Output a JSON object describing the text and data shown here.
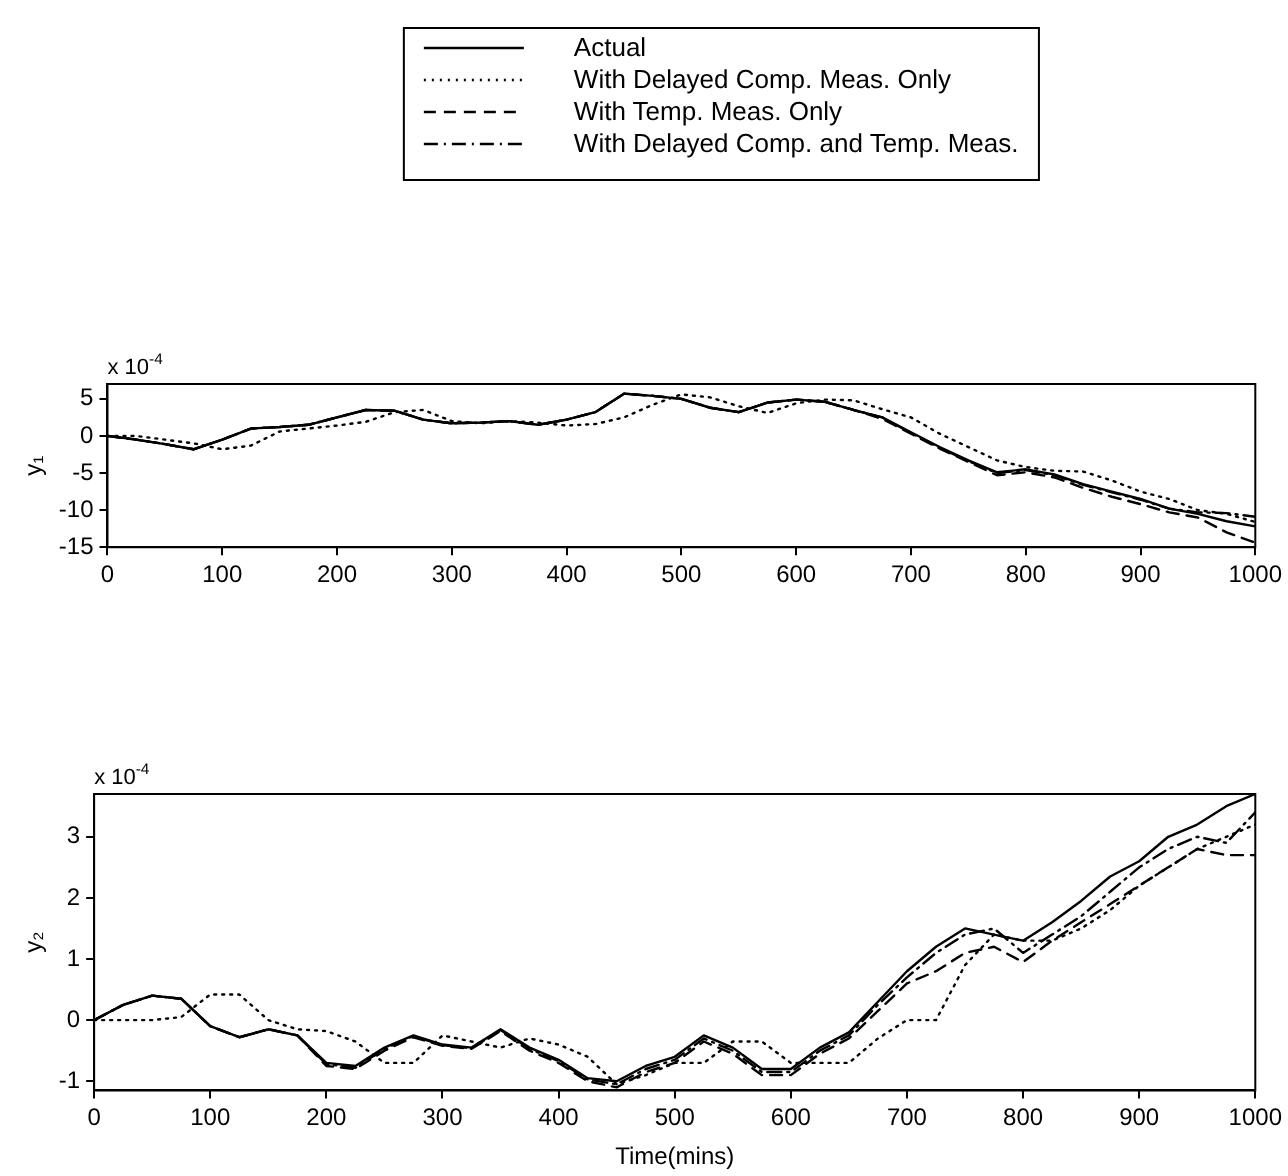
{
  "chart_data": [
    {
      "type": "line",
      "ylabel": "y₁",
      "annotations": [
        "x 10$^{-4}$"
      ],
      "legend": "top",
      "marker": "none",
      "grid": false,
      "x": [
        0,
        25,
        50,
        75,
        100,
        125,
        150,
        175,
        200,
        225,
        250,
        275,
        300,
        325,
        350,
        375,
        400,
        425,
        450,
        475,
        500,
        525,
        550,
        575,
        600,
        625,
        650,
        675,
        700,
        725,
        750,
        775,
        800,
        825,
        850,
        875,
        900,
        925,
        950,
        975,
        1000
      ],
      "xlim": [
        0,
        1000
      ],
      "xticks": [
        0,
        100,
        200,
        300,
        400,
        500,
        600,
        700,
        800,
        900,
        1000
      ],
      "ylim": [
        -15,
        7
      ],
      "yticks": [
        -15,
        -10,
        -5,
        0,
        5
      ],
      "series": [
        {
          "name": "Actual",
          "color": "#000000",
          "line_style": "solid",
          "values": [
            0,
            -0.5,
            -1.1,
            -1.8,
            -0.5,
            1.0,
            1.2,
            1.5,
            2.5,
            3.5,
            3.4,
            2.2,
            1.7,
            1.8,
            2.0,
            1.5,
            2.2,
            3.2,
            5.7,
            5.4,
            5.0,
            3.8,
            3.2,
            4.5,
            4.9,
            4.6,
            3.5,
            2.5,
            0.5,
            -1.5,
            -3.3,
            -4.9,
            -4.5,
            -5.2,
            -6.5,
            -7.5,
            -8.5,
            -9.8,
            -10.5,
            -11.5,
            -12.2
          ]
        },
        {
          "name": "With Delayed Comp. Meas. Only",
          "color": "#000000",
          "line_style": "dotted",
          "values": [
            0,
            0,
            -0.5,
            -1.0,
            -1.8,
            -1.3,
            0.6,
            1.0,
            1.4,
            1.9,
            3.2,
            3.5,
            2.0,
            1.7,
            2.0,
            1.8,
            1.4,
            1.6,
            2.5,
            4.2,
            5.6,
            5.2,
            4.0,
            3.1,
            4.4,
            4.9,
            4.8,
            3.6,
            2.5,
            0.3,
            -1.5,
            -3.3,
            -4.2,
            -4.7,
            -4.8,
            -6.0,
            -7.5,
            -8.5,
            -10.0,
            -10.5,
            -11.6
          ]
        },
        {
          "name": "With Temp. Meas. Only",
          "color": "#000000",
          "line_style": "dashed",
          "values": [
            0,
            -0.5,
            -1.1,
            -1.8,
            -0.5,
            1.0,
            1.2,
            1.5,
            2.5,
            3.5,
            3.4,
            2.2,
            1.7,
            1.8,
            2.0,
            1.5,
            2.2,
            3.2,
            5.7,
            5.4,
            5.0,
            3.8,
            3.2,
            4.5,
            4.9,
            4.6,
            3.5,
            2.3,
            0.3,
            -1.7,
            -3.5,
            -5.3,
            -4.9,
            -5.6,
            -7.0,
            -8.2,
            -9.2,
            -10.3,
            -11.0,
            -13.0,
            -14.4
          ]
        },
        {
          "name": "With Delayed Comp. and Temp. Meas.",
          "color": "#000000",
          "line_style": "dashdot",
          "values": [
            0,
            -0.5,
            -1.1,
            -1.8,
            -0.5,
            1.0,
            1.2,
            1.5,
            2.5,
            3.5,
            3.4,
            2.2,
            1.7,
            1.8,
            2.0,
            1.5,
            2.2,
            3.2,
            5.7,
            5.4,
            5.0,
            3.8,
            3.2,
            4.5,
            4.9,
            4.6,
            3.5,
            2.5,
            0.4,
            -1.6,
            -3.4,
            -5.0,
            -4.6,
            -5.3,
            -6.6,
            -7.6,
            -8.6,
            -9.8,
            -10.3,
            -10.4,
            -10.9
          ]
        }
      ]
    },
    {
      "type": "line",
      "ylabel": "y₂",
      "xlabel": "Time(mins)",
      "annotations": [
        "x 10$^{-4}$"
      ],
      "marker": "none",
      "grid": false,
      "x": [
        0,
        25,
        50,
        75,
        100,
        125,
        150,
        175,
        200,
        225,
        250,
        275,
        300,
        325,
        350,
        375,
        400,
        425,
        450,
        475,
        500,
        525,
        550,
        575,
        600,
        625,
        650,
        675,
        700,
        725,
        750,
        775,
        800,
        825,
        850,
        875,
        900,
        925,
        950,
        975,
        1000
      ],
      "xlim": [
        0,
        1000
      ],
      "xticks": [
        0,
        100,
        200,
        300,
        400,
        500,
        600,
        700,
        800,
        900,
        1000
      ],
      "ylim": [
        -1.15,
        3.7
      ],
      "yticks": [
        -1,
        0,
        1,
        2,
        3
      ],
      "series": [
        {
          "color": "#000000",
          "line_style": "solid",
          "values": [
            0,
            0.25,
            0.4,
            0.35,
            -0.1,
            -0.28,
            -0.15,
            -0.25,
            -0.7,
            -0.75,
            -0.45,
            -0.25,
            -0.4,
            -0.45,
            -0.15,
            -0.45,
            -0.65,
            -0.95,
            -1.0,
            -0.75,
            -0.6,
            -0.25,
            -0.45,
            -0.8,
            -0.8,
            -0.45,
            -0.2,
            0.3,
            0.8,
            1.2,
            1.5,
            1.4,
            1.3,
            1.6,
            1.95,
            2.35,
            2.6,
            3.0,
            3.2,
            3.5,
            3.7
          ]
        },
        {
          "color": "#000000",
          "line_style": "dotted",
          "values": [
            0,
            0,
            0,
            0.05,
            0.42,
            0.42,
            0.0,
            -0.15,
            -0.18,
            -0.35,
            -0.7,
            -0.7,
            -0.25,
            -0.35,
            -0.45,
            -0.3,
            -0.4,
            -0.6,
            -1.05,
            -0.9,
            -0.7,
            -0.7,
            -0.35,
            -0.35,
            -0.7,
            -0.7,
            -0.7,
            -0.3,
            0.0,
            0.0,
            0.9,
            1.4,
            1.3,
            1.3,
            1.5,
            1.8,
            2.2,
            2.5,
            2.8,
            3.0,
            3.2
          ]
        },
        {
          "color": "#000000",
          "line_style": "dashed",
          "values": [
            0,
            0.25,
            0.4,
            0.35,
            -0.1,
            -0.28,
            -0.15,
            -0.25,
            -0.75,
            -0.8,
            -0.5,
            -0.28,
            -0.42,
            -0.47,
            -0.18,
            -0.5,
            -0.7,
            -1.0,
            -1.1,
            -0.85,
            -0.7,
            -0.35,
            -0.55,
            -0.9,
            -0.9,
            -0.55,
            -0.3,
            0.15,
            0.6,
            0.8,
            1.1,
            1.2,
            0.95,
            1.3,
            1.6,
            1.9,
            2.2,
            2.5,
            2.8,
            2.7,
            2.7
          ]
        },
        {
          "color": "#000000",
          "line_style": "dashdot",
          "values": [
            0,
            0.25,
            0.4,
            0.35,
            -0.1,
            -0.28,
            -0.15,
            -0.25,
            -0.72,
            -0.78,
            -0.47,
            -0.26,
            -0.41,
            -0.46,
            -0.16,
            -0.47,
            -0.67,
            -0.97,
            -1.05,
            -0.8,
            -0.65,
            -0.3,
            -0.5,
            -0.85,
            -0.85,
            -0.5,
            -0.25,
            0.25,
            0.7,
            1.1,
            1.4,
            1.5,
            1.1,
            1.4,
            1.7,
            2.1,
            2.5,
            2.8,
            3.0,
            2.9,
            3.4
          ]
        }
      ]
    }
  ]
}
